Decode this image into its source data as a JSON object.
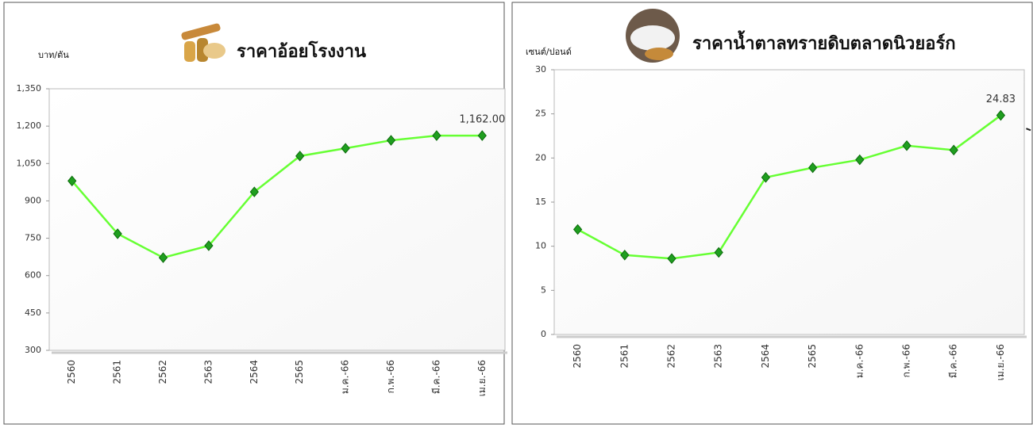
{
  "chart_data": [
    {
      "type": "line",
      "title": "ราคาอ้อยโรงงาน",
      "y_label": "บาท/ตัน",
      "categories": [
        "2560",
        "2561",
        "2562",
        "2563",
        "2564",
        "2565",
        "ม.ค.-66",
        "ก.พ.-66",
        "มี.ค.-66",
        "เม.ย.-66"
      ],
      "series": [
        {
          "color": "#66ff33",
          "values": [
            980,
            768,
            672,
            720,
            936,
            1080,
            1111,
            1143,
            1162,
            1162
          ],
          "value_labels": [
            null,
            null,
            null,
            null,
            null,
            null,
            null,
            null,
            null,
            "1,162.00"
          ]
        }
      ],
      "ylim": [
        300,
        1350
      ],
      "yticks": [
        300,
        450,
        600,
        750,
        900,
        {
          "value": 1050,
          "label": "1,050"
        },
        {
          "value": 1200,
          "label": "1,200"
        },
        {
          "value": 1350,
          "label": "1,350"
        }
      ]
    },
    {
      "type": "line",
      "title": "ราคาน้ำตาลทรายดิบตลาดนิวยอร์ก",
      "y_label": "เซนต์/ปอนด์",
      "categories": [
        "2560",
        "2561",
        "2562",
        "2563",
        "2564",
        "2565",
        "ม.ค.-66",
        "ก.พ.-66",
        "มี.ค.-66",
        "เม.ย.-66"
      ],
      "series": [
        {
          "color": "#66ff33",
          "values": [
            11.9,
            9.0,
            8.6,
            9.3,
            17.8,
            18.9,
            19.8,
            21.4,
            20.9,
            24.83
          ],
          "value_labels": [
            null,
            null,
            null,
            null,
            null,
            null,
            null,
            null,
            null,
            "24.83"
          ]
        }
      ],
      "ylim": [
        0,
        30
      ],
      "yticks": [
        0,
        5,
        10,
        15,
        20,
        25,
        30
      ]
    }
  ]
}
